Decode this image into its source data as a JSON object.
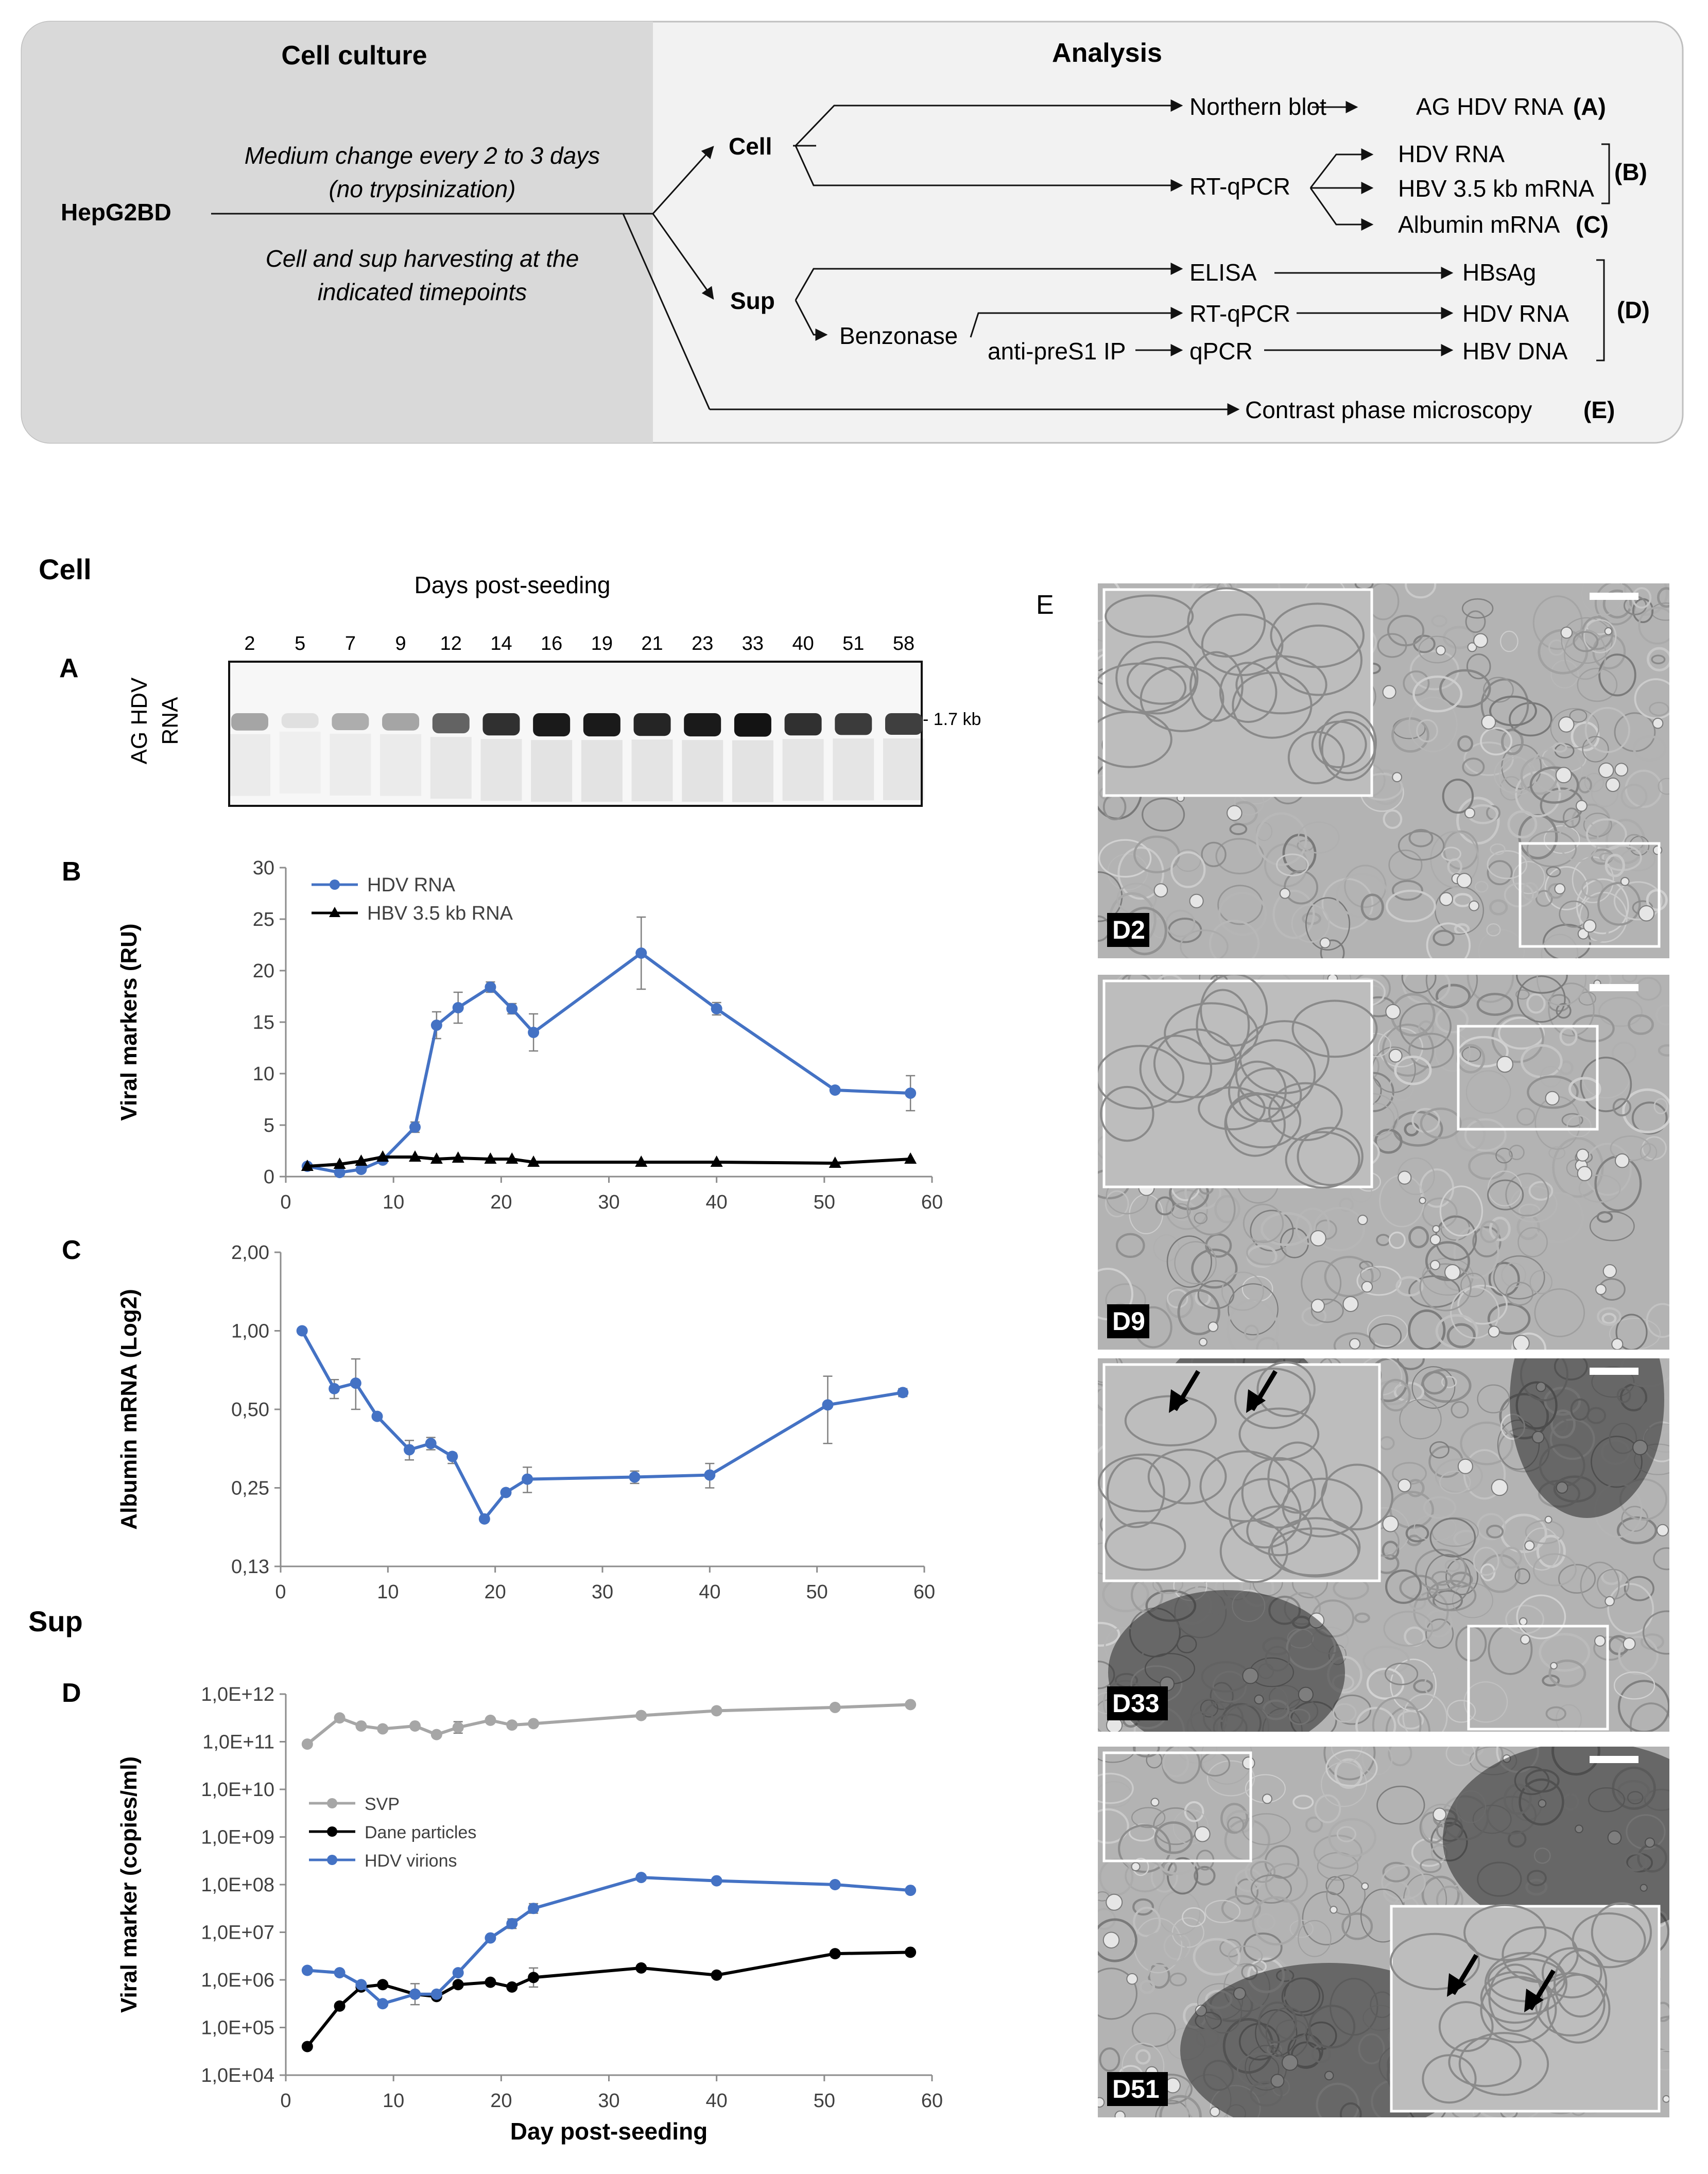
{
  "workflow": {
    "cell_culture_header": "Cell culture",
    "analysis_header": "Analysis",
    "cell_line": "HepG2BD",
    "note1_line1": "Medium change every 2 to 3 days",
    "note1_line2": "(no trypsinization)",
    "note2_line1": "Cell and sup harvesting at the",
    "note2_line2": "indicated timepoints",
    "cell": "Cell",
    "sup": "Sup",
    "northern": "Northern blot",
    "ag_hdv": "AG HDV RNA",
    "tag_a": "(A)",
    "rtqpcr1": "RT-qPCR",
    "hdv_rna1": "HDV RNA",
    "hbv_mrna": "HBV 3.5 kb mRNA",
    "tag_b": "(B)",
    "albumin": "Albumin mRNA",
    "tag_c": "(C)",
    "elisa": "ELISA",
    "hbsag": "HBsAg",
    "benzonase": "Benzonase",
    "rtqpcr2": "RT-qPCR",
    "hdv_rna2": "HDV RNA",
    "tag_d": "(D)",
    "antipres1": "anti-preS1 IP",
    "qpcr": "qPCR",
    "hbv_dna": "HBV DNA",
    "microscopy": "Contrast phase microscopy",
    "tag_e": "(E)"
  },
  "section_labels": {
    "cell": "Cell",
    "sup": "Sup"
  },
  "blot": {
    "panel_label": "A",
    "title": "Days post-seeding",
    "ylabel_line1": "AG HDV",
    "ylabel_line2": "RNA",
    "size_marker": "- 1.7 kb",
    "lanes": [
      "2",
      "5",
      "7",
      "9",
      "12",
      "14",
      "16",
      "19",
      "21",
      "23",
      "33",
      "40",
      "51",
      "58"
    ],
    "band_intensity": [
      0.32,
      0.05,
      0.28,
      0.32,
      0.62,
      0.85,
      0.95,
      0.95,
      0.9,
      0.95,
      0.98,
      0.85,
      0.8,
      0.78
    ]
  },
  "chart_data": [
    {
      "panel": "B",
      "type": "line",
      "ylabel": "Viral markers (RU)",
      "xlim": [
        0,
        60
      ],
      "ylim": [
        0,
        30
      ],
      "xticks": [
        "0",
        "10",
        "20",
        "30",
        "40",
        "50",
        "60"
      ],
      "yticks": [
        "0",
        "5",
        "10",
        "15",
        "20",
        "25",
        "30"
      ],
      "legend_position": "top-left",
      "series": [
        {
          "name": "HDV RNA",
          "color": "#4472C4",
          "marker": "circle",
          "x": [
            2,
            5,
            7,
            9,
            12,
            14,
            16,
            19,
            21,
            23,
            33,
            40,
            51,
            58
          ],
          "y": [
            1,
            0.4,
            0.7,
            1.6,
            4.8,
            14.7,
            16.4,
            18.4,
            16.3,
            14,
            21.7,
            16.3,
            8.4,
            8.1
          ],
          "err": [
            0,
            0,
            0,
            0,
            0.5,
            1.3,
            1.5,
            0.5,
            0.5,
            1.8,
            3.5,
            0.6,
            0,
            1.7
          ]
        },
        {
          "name": "HBV 3.5 kb RNA",
          "color": "#000000",
          "marker": "triangle",
          "x": [
            2,
            5,
            7,
            9,
            12,
            14,
            16,
            19,
            21,
            23,
            33,
            40,
            51,
            58
          ],
          "y": [
            1,
            1.2,
            1.5,
            1.9,
            1.9,
            1.7,
            1.8,
            1.7,
            1.7,
            1.4,
            1.4,
            1.4,
            1.3,
            1.7
          ],
          "err": [
            0,
            0,
            0,
            0,
            0,
            0,
            0,
            0,
            0,
            0,
            0,
            0,
            0,
            0
          ]
        }
      ]
    },
    {
      "panel": "C",
      "type": "line",
      "ylabel": "Albumin mRNA (Log2)",
      "scale": "log2",
      "xlim": [
        0,
        60
      ],
      "ylim": [
        0.125,
        2
      ],
      "xticks": [
        "0",
        "10",
        "20",
        "30",
        "40",
        "50",
        "60"
      ],
      "ytick_values": [
        0.125,
        0.25,
        0.5,
        1,
        2
      ],
      "yticks": [
        "0,13",
        "0,25",
        "0,50",
        "1,00",
        "2,00"
      ],
      "series": [
        {
          "name": "",
          "color": "#4472C4",
          "marker": "circle",
          "x": [
            2,
            5,
            7,
            9,
            12,
            14,
            16,
            19,
            21,
            23,
            33,
            40,
            51,
            58
          ],
          "y": [
            1,
            0.6,
            0.63,
            0.47,
            0.35,
            0.37,
            0.33,
            0.19,
            0.24,
            0.27,
            0.275,
            0.28,
            0.52,
            0.58
          ],
          "err_lo": [
            0,
            0.55,
            0.5,
            0,
            0.32,
            0.35,
            0.31,
            0,
            0,
            0.24,
            0.26,
            0.25,
            0.37,
            0.56
          ],
          "err_hi": [
            0,
            0.65,
            0.78,
            0,
            0.38,
            0.39,
            0.34,
            0,
            0,
            0.3,
            0.29,
            0.31,
            0.67,
            0.6
          ]
        }
      ]
    },
    {
      "panel": "D",
      "type": "line",
      "ylabel": "Viral marker (copies/ml)",
      "xlabel": "Day post-seeding",
      "scale": "log10",
      "xlim": [
        0,
        60
      ],
      "ylim": [
        4,
        12
      ],
      "xticks": [
        "0",
        "10",
        "20",
        "30",
        "40",
        "50",
        "60"
      ],
      "ytick_values": [
        4,
        5,
        6,
        7,
        8,
        9,
        10,
        11,
        12
      ],
      "yticks": [
        "1,0E+04",
        "1,0E+05",
        "1,0E+06",
        "1,0E+07",
        "1,0E+08",
        "1,0E+09",
        "1,0E+10",
        "1,0E+11",
        "1,0E+12"
      ],
      "legend_position": "middle-left",
      "series": [
        {
          "name": "SVP",
          "color": "#A6A6A6",
          "marker": "circle",
          "x": [
            2,
            5,
            7,
            9,
            12,
            14,
            16,
            19,
            21,
            23,
            33,
            40,
            51,
            58
          ],
          "y": [
            10.95,
            11.5,
            11.33,
            11.27,
            11.33,
            11.15,
            11.3,
            11.45,
            11.35,
            11.38,
            11.55,
            11.65,
            11.72,
            11.78
          ],
          "err": [
            0,
            0,
            0,
            0,
            0,
            0,
            0.12,
            0,
            0,
            0,
            0,
            0,
            0,
            0
          ]
        },
        {
          "name": "Dane particles",
          "color": "#000000",
          "marker": "circle",
          "x": [
            2,
            5,
            7,
            9,
            12,
            14,
            16,
            19,
            21,
            23,
            33,
            40,
            51,
            58
          ],
          "y": [
            4.6,
            5.45,
            5.85,
            5.9,
            5.7,
            5.65,
            5.9,
            5.95,
            5.85,
            6.05,
            6.25,
            6.1,
            6.55,
            6.58
          ],
          "err": [
            0,
            0,
            0,
            0,
            0,
            0,
            0,
            0,
            0,
            0.2,
            0,
            0,
            0,
            0
          ]
        },
        {
          "name": "HDV virions",
          "color": "#4472C4",
          "marker": "circle",
          "x": [
            2,
            5,
            7,
            9,
            12,
            14,
            16,
            19,
            21,
            23,
            33,
            40,
            51,
            58
          ],
          "y": [
            6.2,
            6.15,
            5.9,
            5.5,
            5.7,
            5.7,
            6.15,
            6.88,
            7.18,
            7.5,
            8.15,
            8.08,
            8.0,
            7.88
          ],
          "err": [
            0,
            0,
            0,
            0,
            0.22,
            0,
            0,
            0,
            0.1,
            0.1,
            0,
            0,
            0,
            0
          ]
        }
      ]
    }
  ],
  "panel_labels": {
    "B": "B",
    "C": "C",
    "D": "D",
    "E": "E"
  },
  "micro_labels": [
    "D2",
    "D9",
    "D33",
    "D51"
  ]
}
